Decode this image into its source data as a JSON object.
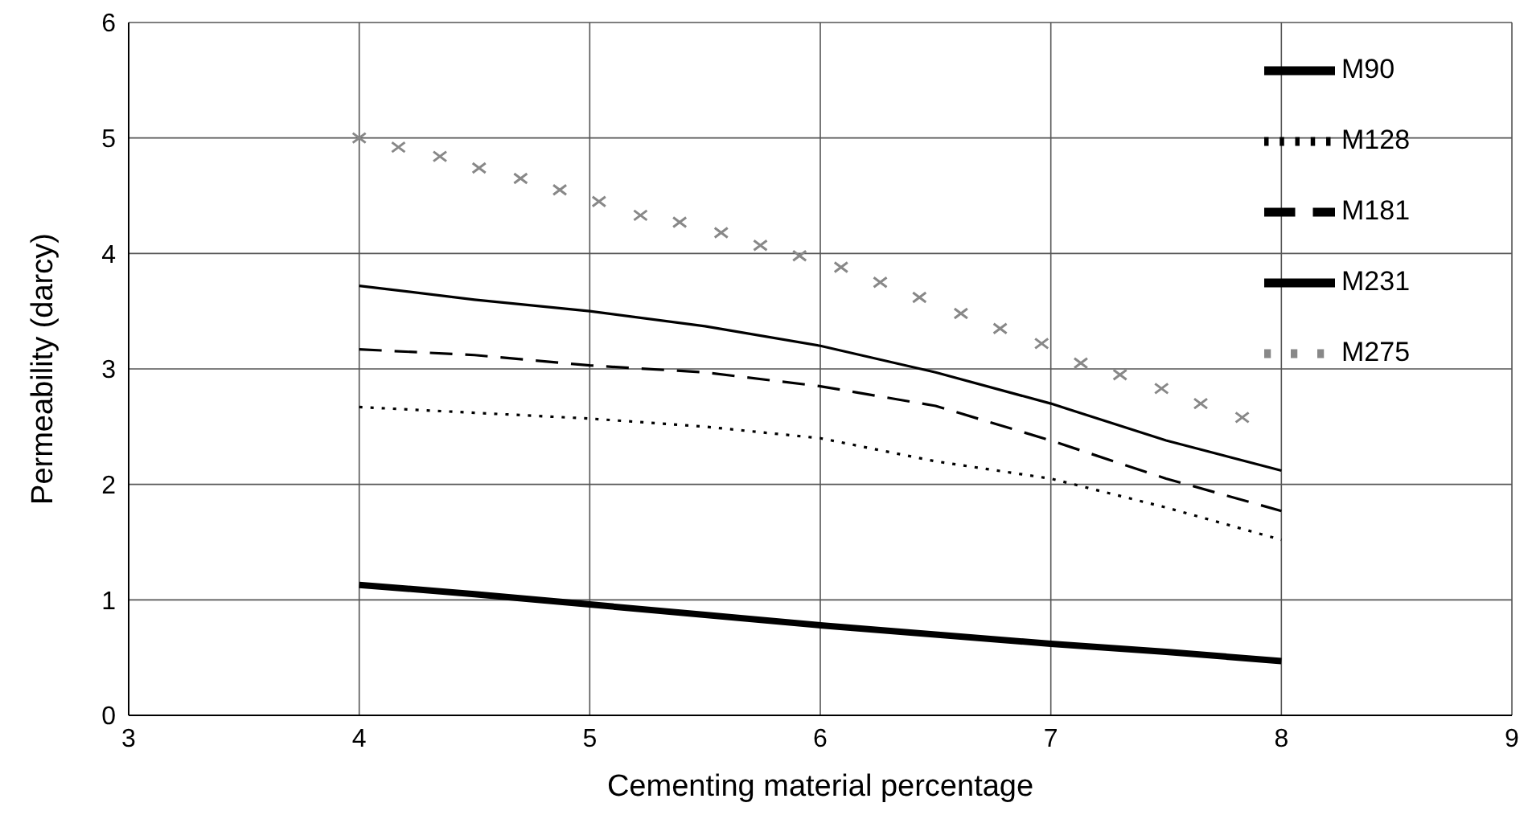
{
  "chart_data": {
    "type": "line",
    "xlabel": "Cementing material percentage",
    "ylabel": "Permeability (darcy)",
    "xlim": [
      3,
      9
    ],
    "xticks": [
      3,
      4,
      5,
      6,
      7,
      8,
      9
    ],
    "ylim": [
      0,
      6
    ],
    "yticks": [
      0,
      1,
      2,
      3,
      4,
      5,
      6
    ],
    "grid": true,
    "legend": "top right",
    "series": [
      {
        "name": "M90",
        "color": "#000000",
        "line_style": "solid",
        "x": [
          4,
          4.5,
          5,
          5.5,
          6,
          6.5,
          7,
          7.5,
          8
        ],
        "values": [
          1.13,
          1.05,
          0.96,
          0.87,
          0.78,
          0.7,
          0.62,
          0.55,
          0.47
        ]
      },
      {
        "name": "M128",
        "color": "#000000",
        "line_style": "dotted",
        "x": [
          4,
          4.5,
          5,
          5.5,
          6,
          6.5,
          7,
          7.5,
          8
        ],
        "values": [
          2.67,
          2.62,
          2.57,
          2.5,
          2.4,
          2.2,
          2.05,
          1.8,
          1.52
        ]
      },
      {
        "name": "M181",
        "color": "#000000",
        "line_style": "dashed",
        "x": [
          4,
          4.5,
          5,
          5.5,
          6,
          6.5,
          7,
          7.5,
          8
        ],
        "values": [
          3.17,
          3.12,
          3.03,
          2.97,
          2.85,
          2.68,
          2.38,
          2.05,
          1.77
        ]
      },
      {
        "name": "M231",
        "color": "#000000",
        "line_style": "solid",
        "x": [
          4,
          4.5,
          5,
          5.5,
          6,
          6.5,
          7,
          7.5,
          8
        ],
        "values": [
          3.72,
          3.6,
          3.5,
          3.37,
          3.2,
          2.97,
          2.7,
          2.38,
          2.12
        ]
      },
      {
        "name": "M275",
        "type": "scatter",
        "marker": "cross",
        "color": "#888888",
        "x": [
          4,
          4.17,
          4.35,
          4.52,
          4.7,
          4.87,
          5.04,
          5.22,
          5.39,
          5.57,
          5.74,
          5.91,
          6.09,
          6.26,
          6.43,
          6.61,
          6.78,
          6.96,
          7.13,
          7.3,
          7.48,
          7.65,
          7.83
        ],
        "values": [
          5,
          4.92,
          4.84,
          4.74,
          4.65,
          4.55,
          4.45,
          4.33,
          4.27,
          4.18,
          4.07,
          3.98,
          3.88,
          3.75,
          3.62,
          3.48,
          3.35,
          3.22,
          3.05,
          2.95,
          2.83,
          2.7,
          2.58
        ]
      }
    ]
  }
}
